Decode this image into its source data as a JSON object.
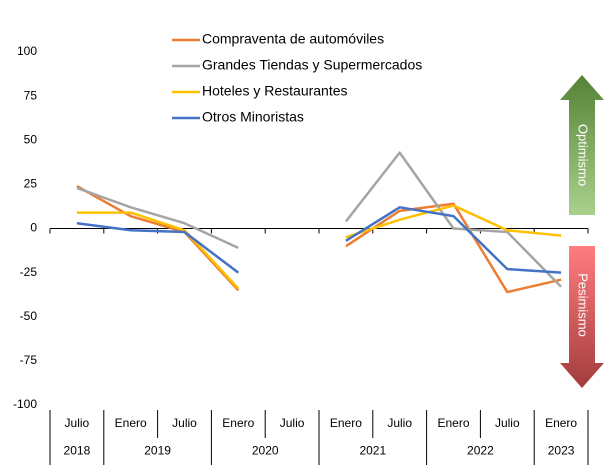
{
  "chart_data": {
    "type": "line",
    "categories": [
      "Julio",
      "Enero",
      "Julio",
      "Enero",
      "Julio",
      "Enero",
      "Julio",
      "Enero",
      "Julio",
      "Enero"
    ],
    "years": [
      "2018",
      "2019",
      "2019",
      "2020",
      "2020",
      "2021",
      "2021",
      "2022",
      "2022",
      "2023"
    ],
    "series": [
      {
        "name": "Compraventa de automóviles",
        "color": "#ed7d31",
        "values": [
          24,
          7,
          -2,
          -35,
          null,
          -10,
          10,
          14,
          -36,
          -29
        ]
      },
      {
        "name": "Grandes Tiendas y Supermercados",
        "color": "#a5a5a5",
        "values": [
          23,
          12,
          3,
          -11,
          null,
          4,
          43,
          0,
          -2,
          -33
        ]
      },
      {
        "name": "Hoteles y Restaurantes",
        "color": "#ffc000",
        "values": [
          9,
          9,
          -1,
          -34,
          null,
          -5,
          5,
          13,
          -1,
          -4
        ]
      },
      {
        "name": "Otros Minoristas",
        "color": "#4472c4",
        "values": [
          3,
          -1,
          -2,
          -25,
          null,
          -7,
          12,
          7,
          -23,
          -25
        ]
      }
    ],
    "ylim": [
      -100,
      100
    ],
    "yticks": [
      -100,
      -75,
      -50,
      -25,
      0,
      25,
      50,
      75,
      100
    ],
    "annotations": [
      "Optimismo",
      "Pesimismo"
    ],
    "legend": "top"
  }
}
